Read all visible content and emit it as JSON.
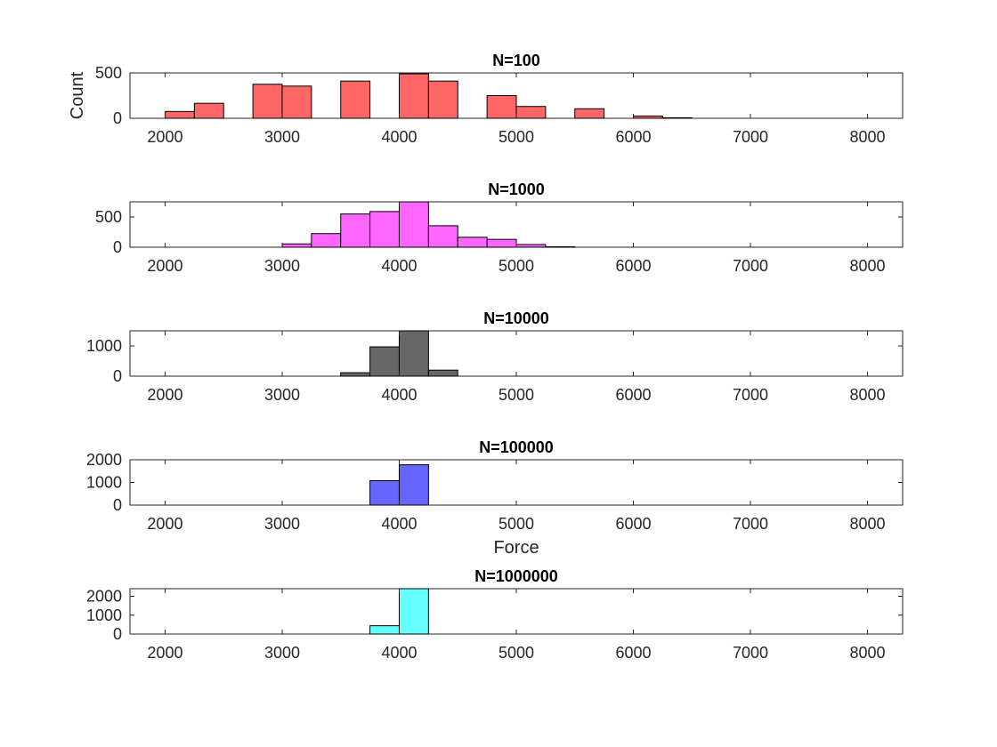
{
  "chart_data": [
    {
      "type": "bar",
      "title": "N=100",
      "xlabel": "",
      "ylabel": "Count",
      "color": "#ff6666",
      "xlim": [
        1700,
        8300
      ],
      "ylim": [
        0,
        500
      ],
      "xticks": [
        2000,
        3000,
        4000,
        5000,
        6000,
        7000,
        8000
      ],
      "yticks": [
        0,
        500
      ],
      "bin_width": 250,
      "bins": [
        {
          "x0": 2000,
          "x1": 2250,
          "count": 75
        },
        {
          "x0": 2250,
          "x1": 2500,
          "count": 165
        },
        {
          "x0": 2750,
          "x1": 3000,
          "count": 375
        },
        {
          "x0": 3000,
          "x1": 3250,
          "count": 355
        },
        {
          "x0": 3500,
          "x1": 3750,
          "count": 410
        },
        {
          "x0": 4000,
          "x1": 4250,
          "count": 490
        },
        {
          "x0": 4250,
          "x1": 4500,
          "count": 410
        },
        {
          "x0": 4750,
          "x1": 5000,
          "count": 250
        },
        {
          "x0": 5000,
          "x1": 5250,
          "count": 130
        },
        {
          "x0": 5500,
          "x1": 5750,
          "count": 105
        },
        {
          "x0": 6000,
          "x1": 6250,
          "count": 25
        },
        {
          "x0": 6250,
          "x1": 6500,
          "count": 6
        }
      ]
    },
    {
      "type": "bar",
      "title": "N=1000",
      "xlabel": "",
      "ylabel": "",
      "color": "#ff66ff",
      "xlim": [
        1700,
        8300
      ],
      "ylim": [
        0,
        750
      ],
      "xticks": [
        2000,
        3000,
        4000,
        5000,
        6000,
        7000,
        8000
      ],
      "yticks": [
        0,
        500
      ],
      "bin_width": 250,
      "bins": [
        {
          "x0": 3000,
          "x1": 3250,
          "count": 55
        },
        {
          "x0": 3250,
          "x1": 3500,
          "count": 225
        },
        {
          "x0": 3500,
          "x1": 3750,
          "count": 550
        },
        {
          "x0": 3750,
          "x1": 4000,
          "count": 590
        },
        {
          "x0": 4000,
          "x1": 4250,
          "count": 750
        },
        {
          "x0": 4250,
          "x1": 4500,
          "count": 355
        },
        {
          "x0": 4500,
          "x1": 4750,
          "count": 165
        },
        {
          "x0": 4750,
          "x1": 5000,
          "count": 130
        },
        {
          "x0": 5000,
          "x1": 5250,
          "count": 45
        },
        {
          "x0": 5250,
          "x1": 5500,
          "count": 8
        }
      ]
    },
    {
      "type": "bar",
      "title": "N=10000",
      "xlabel": "",
      "ylabel": "",
      "color": "#666666",
      "xlim": [
        1700,
        8300
      ],
      "ylim": [
        0,
        1500
      ],
      "xticks": [
        2000,
        3000,
        4000,
        5000,
        6000,
        7000,
        8000
      ],
      "yticks": [
        0,
        1000
      ],
      "bin_width": 250,
      "bins": [
        {
          "x0": 3500,
          "x1": 3750,
          "count": 115
        },
        {
          "x0": 3750,
          "x1": 4000,
          "count": 970
        },
        {
          "x0": 4000,
          "x1": 4250,
          "count": 1500
        },
        {
          "x0": 4250,
          "x1": 4500,
          "count": 200
        }
      ]
    },
    {
      "type": "bar",
      "title": "N=100000",
      "xlabel": "Force",
      "ylabel": "",
      "color": "#6666ff",
      "xlim": [
        1700,
        8300
      ],
      "ylim": [
        0,
        2000
      ],
      "xticks": [
        2000,
        3000,
        4000,
        5000,
        6000,
        7000,
        8000
      ],
      "yticks": [
        0,
        1000,
        2000
      ],
      "bin_width": 250,
      "bins": [
        {
          "x0": 3750,
          "x1": 4000,
          "count": 1080
        },
        {
          "x0": 4000,
          "x1": 4250,
          "count": 1780
        }
      ]
    },
    {
      "type": "bar",
      "title": "N=1000000",
      "xlabel": "",
      "ylabel": "",
      "color": "#66ffff",
      "xlim": [
        1700,
        8300
      ],
      "ylim": [
        0,
        2400
      ],
      "xticks": [
        2000,
        3000,
        4000,
        5000,
        6000,
        7000,
        8000
      ],
      "yticks": [
        0,
        1000,
        2000
      ],
      "bin_width": 250,
      "bins": [
        {
          "x0": 3750,
          "x1": 4000,
          "count": 440
        },
        {
          "x0": 4000,
          "x1": 4250,
          "count": 2400
        }
      ]
    }
  ]
}
